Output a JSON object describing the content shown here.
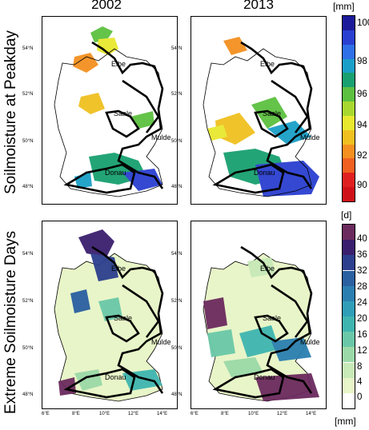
{
  "columns": [
    "2002",
    "2013"
  ],
  "rows": [
    "Soilmoisture at Peakday",
    "Extreme Soilmoisture Days"
  ],
  "colorbar_top": {
    "unit": "[mm]",
    "labels": [
      "100",
      "98",
      "96",
      "94",
      "92",
      "90"
    ],
    "colors": [
      "#1c1c9a",
      "#2a3fd0",
      "#2f6fe8",
      "#1aa0c8",
      "#18a070",
      "#5cc040",
      "#a8d830",
      "#e8e830",
      "#f0c020",
      "#f49020",
      "#f06020",
      "#e02020",
      "#d01018"
    ]
  },
  "colorbar_bottom": {
    "unit": "[d]",
    "labels": [
      "40",
      "36",
      "32",
      "28",
      "24",
      "20",
      "16",
      "12",
      "8",
      "4",
      "0"
    ],
    "colors": [
      "#6b2a5e",
      "#3a1f6e",
      "#2c3f8e",
      "#2a5fa0",
      "#2b7fb0",
      "#2f9fb8",
      "#3fb5b0",
      "#6ac8a8",
      "#9cd9a8",
      "#c8e9b8",
      "#e8f5c8",
      "#ffffff"
    ]
  },
  "rivers": [
    "Elbe",
    "Saale",
    "Mulde",
    "Donau"
  ],
  "lat_ticks": [
    "54°N",
    "52°N",
    "50°N",
    "48°N"
  ],
  "lon_ticks": [
    "6°E",
    "8°E",
    "10°E",
    "12°E",
    "14°E"
  ],
  "bottom_unit": "[mm]"
}
